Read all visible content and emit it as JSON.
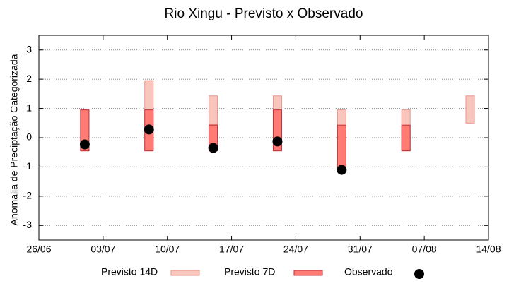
{
  "chart_data": {
    "type": "range",
    "title": "Rio Xingu - Previsto x Observado",
    "y_label": "Anomalia de Preciptação Categorizada",
    "x": [
      "01/07",
      "08/07",
      "15/07",
      "22/07",
      "29/07",
      "05/08",
      "12/08"
    ],
    "xlim": [
      "26/06",
      "14/08"
    ],
    "xticks": [
      "26/06",
      "03/07",
      "10/07",
      "17/07",
      "24/07",
      "31/07",
      "07/08",
      "14/08"
    ],
    "ylim": [
      -3.5,
      3.5
    ],
    "yticks": [
      -3,
      -2,
      -1,
      0,
      1,
      2,
      3
    ],
    "grid": true,
    "series": [
      {
        "name": "Previsto 14D",
        "type": "range",
        "color": "#f9c6bd",
        "edge": "#e8958a",
        "low": [
          -0.45,
          -0.45,
          0.45,
          -0.45,
          -1.0,
          -0.45,
          0.5
        ],
        "high": [
          0.95,
          1.95,
          1.43,
          1.43,
          0.95,
          0.95,
          1.43
        ]
      },
      {
        "name": "Previsto 7D",
        "type": "range",
        "color": "#ff7b74",
        "edge": "#c0303a",
        "low": [
          -0.45,
          -0.45,
          -0.45,
          -0.45,
          -1.0,
          -0.45,
          null
        ],
        "high": [
          0.95,
          0.95,
          0.43,
          0.95,
          0.43,
          0.43,
          null
        ]
      },
      {
        "name": "Observado",
        "type": "scatter",
        "color": "#000000",
        "values": [
          -0.23,
          0.28,
          -0.35,
          -0.13,
          -1.1,
          null,
          null
        ]
      }
    ]
  }
}
